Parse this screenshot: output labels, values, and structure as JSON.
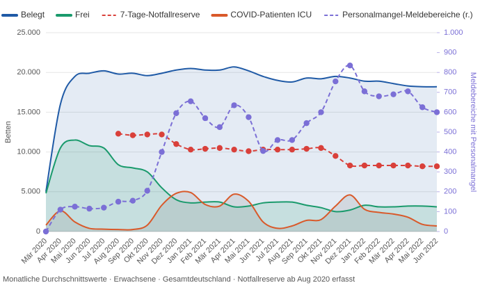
{
  "chart_data": {
    "type": "line",
    "footer": "Monatliche Durchschnittswerte · Erwachsene · Gesamtdeutschland · Notfallreserve ab Aug 2020 erfasst",
    "y_label": "Betten",
    "y2_label": "Meldebereiche mit Personalmangel",
    "categories": [
      "Mär 2020",
      "Apr 2020",
      "Mai 2020",
      "Jun 2020",
      "Jul 2020",
      "Aug 2020",
      "Sep 2020",
      "Okt 2020",
      "Nov 2020",
      "Dez 2020",
      "Jan 2021",
      "Feb 2021",
      "Mär 2021",
      "Apr 2021",
      "Mai 2021",
      "Jun 2021",
      "Jul 2021",
      "Aug 2021",
      "Sep 2021",
      "Okt 2021",
      "Nov 2021",
      "Dez 2021",
      "Jan 2022",
      "Feb 2022",
      "Mär 2022",
      "Apr 2022",
      "Mai 2022",
      "Jun 2022"
    ],
    "ylim": [
      0,
      25000
    ],
    "yticks": [
      0,
      {
        "value": 5000,
        "label": "5.000"
      },
      {
        "value": 10000,
        "label": "10.000"
      },
      {
        "value": 15000,
        "label": "15.000"
      },
      {
        "value": 20000,
        "label": "20.000"
      },
      {
        "value": 25000,
        "label": "25.000"
      }
    ],
    "y2lim": [
      0,
      1000
    ],
    "y2ticks": [
      0,
      100,
      200,
      300,
      400,
      500,
      600,
      700,
      800,
      900,
      {
        "value": 1000,
        "label": "1.000"
      }
    ],
    "grid": true,
    "series": [
      {
        "name": "Belegt",
        "color": "#1f5aa6",
        "area": true,
        "fill": "rgba(31,90,166,0.12)",
        "dashed": false,
        "markers": false,
        "values": [
          5000,
          16000,
          19500,
          19900,
          20200,
          19800,
          19900,
          19600,
          19900,
          20300,
          20500,
          20300,
          20300,
          20700,
          20200,
          19500,
          19000,
          18800,
          19300,
          19200,
          19500,
          19300,
          18900,
          18900,
          18600,
          18300,
          18200,
          18200
        ]
      },
      {
        "name": "Frei",
        "color": "#1a9a6c",
        "area": true,
        "fill": "rgba(26,154,108,0.15)",
        "dashed": false,
        "markers": false,
        "values": [
          4800,
          10500,
          11500,
          10800,
          10500,
          8400,
          8000,
          7500,
          5500,
          4000,
          3600,
          3700,
          3700,
          3100,
          3200,
          3600,
          3700,
          3700,
          3300,
          3000,
          2500,
          2700,
          3300,
          3100,
          3100,
          3200,
          3200,
          3100
        ]
      },
      {
        "name": "7-Tage-Notfallreserve",
        "color": "#d9403a",
        "area": false,
        "dashed": true,
        "markers": true,
        "values": [
          null,
          null,
          null,
          null,
          null,
          12300,
          12100,
          12200,
          12200,
          11000,
          10300,
          10400,
          10500,
          10300,
          10100,
          10300,
          10300,
          10300,
          10400,
          10500,
          9500,
          8300,
          8300,
          8300,
          8300,
          8300,
          8200,
          8200
        ]
      },
      {
        "name": "COVID-Patienten ICU",
        "color": "#d9592a",
        "area": true,
        "fill": "rgba(140,140,140,0.2)",
        "dashed": false,
        "markers": false,
        "values": [
          800,
          2600,
          1200,
          400,
          300,
          250,
          250,
          800,
          3300,
          4800,
          4900,
          3400,
          3200,
          4700,
          3800,
          1200,
          400,
          700,
          1400,
          1500,
          3200,
          4600,
          2800,
          2400,
          2200,
          1800,
          900,
          700
        ]
      },
      {
        "name": "Personalmangel-Meldebereiche (r.)",
        "color": "#7b6fd6",
        "area": false,
        "dashed": true,
        "markers": true,
        "axis": "y2",
        "values": [
          0,
          110,
          125,
          115,
          120,
          150,
          155,
          205,
          400,
          595,
          655,
          570,
          525,
          635,
          575,
          405,
          460,
          460,
          545,
          600,
          755,
          835,
          705,
          680,
          690,
          705,
          625,
          600
        ]
      }
    ]
  }
}
